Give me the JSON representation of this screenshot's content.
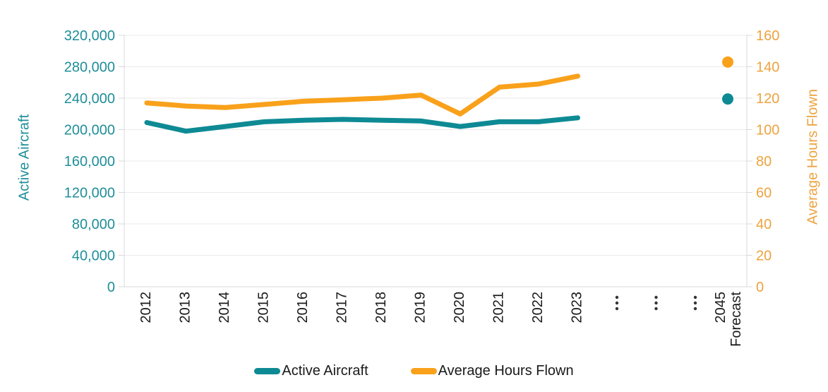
{
  "chart_data": {
    "type": "line",
    "title": "",
    "categories": [
      "2012",
      "2013",
      "2014",
      "2015",
      "2016",
      "2017",
      "2018",
      "2019",
      "2020",
      "2021",
      "2022",
      "2023"
    ],
    "gap_markers": [
      "⋮",
      "⋮",
      "⋮"
    ],
    "forecast_label_lines": [
      "2045",
      "Forecast"
    ],
    "series": [
      {
        "name": "Active Aircraft",
        "axis": "left",
        "color": "#0E8A94",
        "values": [
          209000,
          198000,
          204000,
          210000,
          212000,
          213000,
          212000,
          211000,
          204000,
          210000,
          210000,
          215000
        ],
        "forecast_value": 239000
      },
      {
        "name": "Average Hours Flown",
        "axis": "right",
        "color": "#F9A11B",
        "values": [
          117,
          115,
          114,
          116,
          118,
          119,
          120,
          122,
          110,
          127,
          129,
          134
        ],
        "forecast_value": 143
      }
    ],
    "left_axis": {
      "title": "Active Aircraft",
      "color": "#1F8E99",
      "min": 0,
      "max": 320000,
      "step": 40000,
      "tick_labels": [
        "0",
        "40,000",
        "80,000",
        "120,000",
        "160,000",
        "200,000",
        "240,000",
        "280,000",
        "320,000"
      ]
    },
    "right_axis": {
      "title": "Average Hours Flown",
      "color": "#EDA33E",
      "min": 0,
      "max": 160,
      "step": 20,
      "tick_labels": [
        "0",
        "20",
        "40",
        "60",
        "80",
        "100",
        "120",
        "140",
        "160"
      ]
    },
    "legend_position": "bottom",
    "grid": true
  },
  "colors": {
    "grid": "#EAEAEA",
    "axis_line": "#D8D8D8",
    "x_label": "#1A1A1A",
    "gap_dot": "#333333",
    "background": "#FFFFFF"
  }
}
